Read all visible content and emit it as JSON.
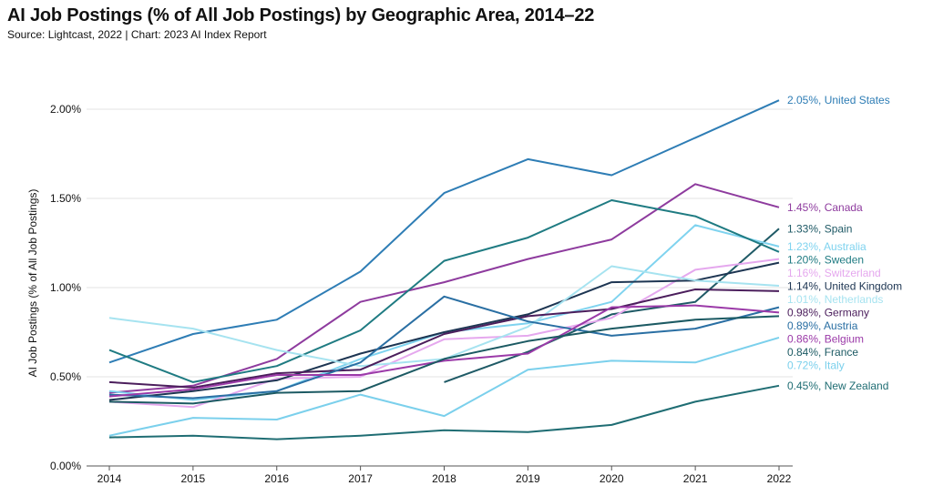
{
  "chart_data": {
    "type": "line",
    "title": "AI Job Postings (% of All Job Postings) by Geographic Area, 2014–22",
    "subtitle": "Source: Lightcast, 2022 | Chart: 2023 AI Index Report",
    "xlabel": "",
    "ylabel": "AI Job Postings (% of All Job Postings)",
    "ylim": [
      0,
      2.3
    ],
    "yticks": [
      0,
      0.5,
      1.0,
      1.5,
      2.0
    ],
    "ytick_labels": [
      "0.00%",
      "0.50%",
      "1.00%",
      "1.50%",
      "2.00%"
    ],
    "x": [
      "2014",
      "2015",
      "2016",
      "2017",
      "2018",
      "2019",
      "2020",
      "2021",
      "2022"
    ],
    "series": [
      {
        "name": "United States",
        "label": "2.05%, United States",
        "color": "#2e7db5",
        "values": [
          0.58,
          0.74,
          0.82,
          1.09,
          1.53,
          1.72,
          1.63,
          1.84,
          2.05
        ]
      },
      {
        "name": "Canada",
        "label": "1.45%, Canada",
        "color": "#8e3b9e",
        "values": [
          0.41,
          0.45,
          0.6,
          0.92,
          1.03,
          1.16,
          1.27,
          1.58,
          1.45
        ]
      },
      {
        "name": "Spain",
        "label": "1.33%, Spain",
        "color": "#1f5a66",
        "values": [
          null,
          null,
          null,
          null,
          0.47,
          0.64,
          0.85,
          0.92,
          1.33
        ]
      },
      {
        "name": "Australia",
        "label": "1.23%, Australia",
        "color": "#7fd3ef",
        "values": [
          0.42,
          0.37,
          0.42,
          0.6,
          0.75,
          0.8,
          0.92,
          1.35,
          1.23
        ]
      },
      {
        "name": "Sweden",
        "label": "1.20%, Sweden",
        "color": "#1f7b82",
        "values": [
          0.65,
          0.47,
          0.56,
          0.76,
          1.15,
          1.28,
          1.49,
          1.4,
          1.2
        ]
      },
      {
        "name": "Switzerland",
        "label": "1.16%, Switzerland",
        "color": "#e5a8ee",
        "values": [
          0.36,
          0.33,
          0.49,
          0.5,
          0.71,
          0.73,
          0.83,
          1.1,
          1.16
        ]
      },
      {
        "name": "United Kingdom",
        "label": "1.14%, United Kingdom",
        "color": "#1d3552",
        "values": [
          0.37,
          0.42,
          0.48,
          0.63,
          0.75,
          0.85,
          1.03,
          1.04,
          1.14
        ]
      },
      {
        "name": "Netherlands",
        "label": "1.01%, Netherlands",
        "color": "#a6e3f0",
        "values": [
          0.83,
          0.77,
          0.65,
          0.56,
          0.6,
          0.78,
          1.12,
          1.04,
          1.01
        ]
      },
      {
        "name": "Germany",
        "label": "0.98%, Germany",
        "color": "#4b1e5c",
        "values": [
          0.47,
          0.44,
          0.52,
          0.54,
          0.74,
          0.84,
          0.88,
          0.99,
          0.98
        ]
      },
      {
        "name": "Austria",
        "label": "0.89%, Austria",
        "color": "#2a6fa3",
        "values": [
          0.4,
          0.38,
          0.42,
          0.58,
          0.95,
          0.81,
          0.73,
          0.77,
          0.89
        ]
      },
      {
        "name": "Belgium",
        "label": "0.86%, Belgium",
        "color": "#9b3aa8",
        "values": [
          0.39,
          0.43,
          0.51,
          0.51,
          0.59,
          0.63,
          0.89,
          0.9,
          0.86
        ]
      },
      {
        "name": "France",
        "label": "0.84%, France",
        "color": "#1c5a63",
        "values": [
          0.36,
          0.35,
          0.41,
          0.42,
          0.6,
          0.7,
          0.77,
          0.82,
          0.84
        ]
      },
      {
        "name": "Italy",
        "label": "0.72%, Italy",
        "color": "#7bd0ec",
        "values": [
          0.17,
          0.27,
          0.26,
          0.4,
          0.28,
          0.54,
          0.59,
          0.58,
          0.72
        ]
      },
      {
        "name": "New Zealand",
        "label": "0.45%, New Zealand",
        "color": "#1f6d73",
        "values": [
          0.16,
          0.17,
          0.15,
          0.17,
          0.2,
          0.19,
          0.23,
          0.36,
          0.45
        ]
      }
    ]
  }
}
